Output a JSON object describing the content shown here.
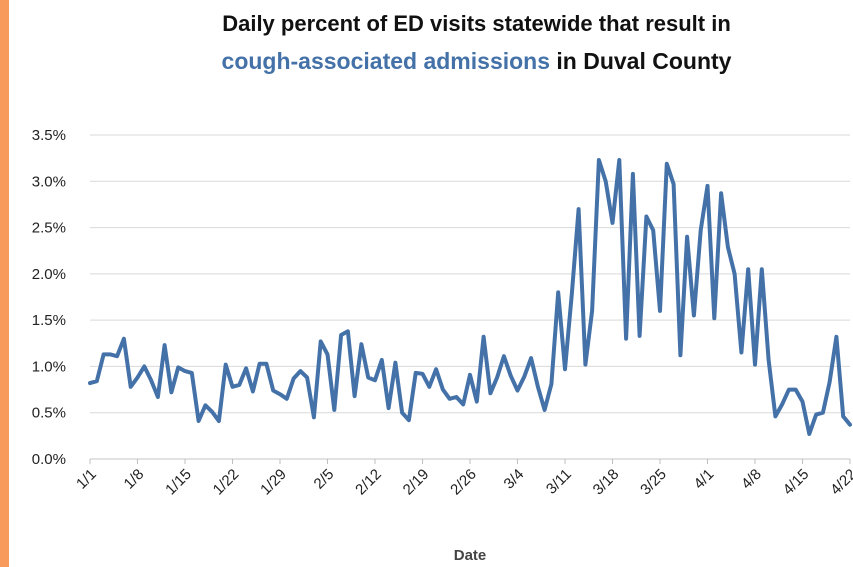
{
  "title": {
    "line1": "Daily percent of ED visits statewide that result in",
    "highlight": "cough-associated admissions",
    "line2_rest": " in Duval County"
  },
  "colors": {
    "series": "#4472a8",
    "accent": "#f79a5c",
    "grid": "#d9d9d9"
  },
  "chart_data": {
    "type": "line",
    "title": "Daily percent of ED visits statewide that result in cough-associated admissions in Duval County",
    "xlabel": "Date",
    "ylabel": "",
    "ylim": [
      0,
      3.5
    ],
    "y_ticks": [
      "0.0%",
      "0.5%",
      "1.0%",
      "1.5%",
      "2.0%",
      "2.5%",
      "3.0%",
      "3.5%"
    ],
    "x_ticks": [
      "1/1",
      "1/8",
      "1/15",
      "1/22",
      "1/29",
      "2/5",
      "2/12",
      "2/19",
      "2/26",
      "3/4",
      "3/11",
      "3/18",
      "3/25",
      "4/1",
      "4/8",
      "4/15",
      "4/22"
    ],
    "grid": true,
    "legend": "none",
    "x_start": "1/1",
    "x_end": "4/23",
    "values": [
      0.82,
      0.84,
      1.13,
      1.13,
      1.11,
      1.3,
      0.78,
      0.88,
      1.0,
      0.85,
      0.67,
      1.23,
      0.72,
      0.99,
      0.95,
      0.93,
      0.41,
      0.58,
      0.51,
      0.41,
      1.02,
      0.78,
      0.8,
      0.98,
      0.73,
      1.03,
      1.03,
      0.74,
      0.7,
      0.65,
      0.87,
      0.95,
      0.88,
      0.45,
      1.27,
      1.13,
      0.53,
      1.34,
      1.38,
      0.68,
      1.24,
      0.88,
      0.85,
      1.07,
      0.55,
      1.04,
      0.5,
      0.42,
      0.93,
      0.92,
      0.78,
      0.97,
      0.75,
      0.65,
      0.67,
      0.59,
      0.91,
      0.62,
      1.32,
      0.71,
      0.88,
      1.11,
      0.9,
      0.74,
      0.89,
      1.09,
      0.78,
      0.53,
      0.81,
      1.8,
      0.97,
      1.78,
      2.7,
      1.02,
      1.6,
      3.23,
      3.0,
      2.55,
      3.23,
      1.3,
      3.08,
      1.33,
      2.62,
      2.47,
      1.6,
      3.19,
      2.97,
      1.12,
      2.4,
      1.55,
      2.47,
      2.95,
      1.52,
      2.87,
      2.29,
      2.0,
      1.15,
      2.05,
      1.02,
      2.05,
      1.07,
      0.46,
      0.59,
      0.75,
      0.75,
      0.62,
      0.27,
      0.48,
      0.5,
      0.83,
      1.32,
      0.46,
      0.37
    ]
  }
}
